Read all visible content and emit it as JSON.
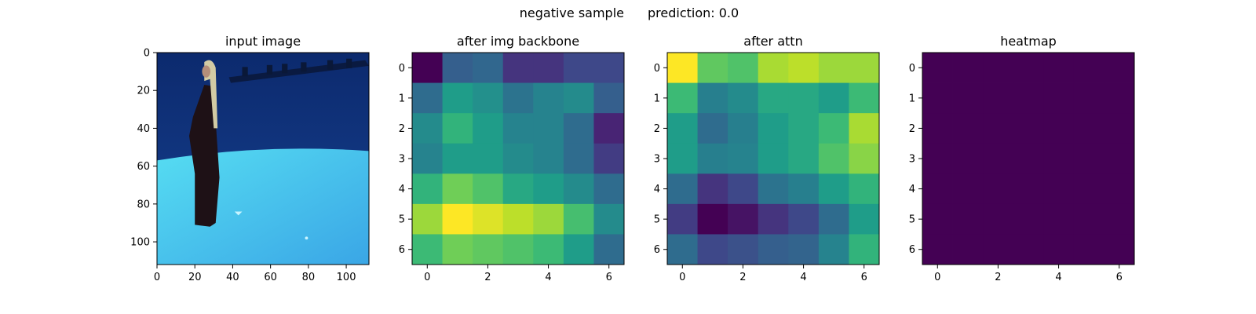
{
  "figure": {
    "suptitle_left": "negative sample",
    "suptitle_right": "prediction: 0.0"
  },
  "colors": {
    "colormap": "viridis",
    "viridis_stops": [
      "#440154",
      "#482878",
      "#3e4989",
      "#31688e",
      "#26828e",
      "#1f9e89",
      "#35b779",
      "#6ece58",
      "#b5de2b",
      "#fde725"
    ],
    "spine": "#000000",
    "background": "#ffffff"
  },
  "chart_data": [
    {
      "type": "image",
      "title": "input image",
      "xlim": [
        0,
        112
      ],
      "ylim": [
        112,
        0
      ],
      "xticks": [
        0,
        20,
        40,
        60,
        80,
        100
      ],
      "yticks": [
        0,
        20,
        40,
        60,
        80,
        100
      ],
      "scene": {
        "wall_color": "#16408f",
        "floor_color": "#56ddf2",
        "person_color": "#1e1116",
        "hair_color": "#d2cba4",
        "rig_color": "#0a1838"
      }
    },
    {
      "type": "heatmap",
      "title": "after img backbone",
      "colormap": "viridis",
      "xticks": [
        0,
        2,
        4,
        6
      ],
      "yticks": [
        0,
        1,
        2,
        3,
        4,
        5,
        6
      ],
      "values": [
        [
          0.0,
          0.3,
          0.33,
          0.15,
          0.15,
          0.22,
          0.22
        ],
        [
          0.35,
          0.55,
          0.5,
          0.38,
          0.45,
          0.48,
          0.3
        ],
        [
          0.48,
          0.65,
          0.55,
          0.45,
          0.45,
          0.35,
          0.1
        ],
        [
          0.45,
          0.55,
          0.55,
          0.48,
          0.45,
          0.35,
          0.18
        ],
        [
          0.65,
          0.78,
          0.72,
          0.6,
          0.55,
          0.48,
          0.35
        ],
        [
          0.85,
          1.0,
          0.95,
          0.9,
          0.85,
          0.7,
          0.48
        ],
        [
          0.68,
          0.78,
          0.75,
          0.72,
          0.68,
          0.55,
          0.35
        ]
      ]
    },
    {
      "type": "heatmap",
      "title": "after attn",
      "colormap": "viridis",
      "xticks": [
        0,
        2,
        4,
        6
      ],
      "yticks": [
        0,
        1,
        2,
        3,
        4,
        5,
        6
      ],
      "values": [
        [
          1.0,
          0.75,
          0.72,
          0.87,
          0.9,
          0.85,
          0.85
        ],
        [
          0.68,
          0.43,
          0.48,
          0.6,
          0.6,
          0.55,
          0.68
        ],
        [
          0.55,
          0.35,
          0.43,
          0.55,
          0.6,
          0.68,
          0.87
        ],
        [
          0.55,
          0.43,
          0.45,
          0.55,
          0.6,
          0.72,
          0.82
        ],
        [
          0.35,
          0.15,
          0.22,
          0.38,
          0.43,
          0.55,
          0.65
        ],
        [
          0.18,
          0.0,
          0.05,
          0.15,
          0.22,
          0.35,
          0.55
        ],
        [
          0.35,
          0.22,
          0.25,
          0.3,
          0.32,
          0.45,
          0.65
        ]
      ]
    },
    {
      "type": "heatmap",
      "title": "heatmap",
      "colormap": "viridis",
      "xticks": [
        0,
        2,
        4,
        6
      ],
      "yticks": [
        0,
        1,
        2,
        3,
        4,
        5,
        6
      ],
      "values": [
        [
          0,
          0,
          0,
          0,
          0,
          0,
          0
        ],
        [
          0,
          0,
          0,
          0,
          0,
          0,
          0
        ],
        [
          0,
          0,
          0,
          0,
          0,
          0,
          0
        ],
        [
          0,
          0,
          0,
          0,
          0,
          0,
          0
        ],
        [
          0,
          0,
          0,
          0,
          0,
          0,
          0
        ],
        [
          0,
          0,
          0,
          0,
          0,
          0,
          0
        ],
        [
          0,
          0,
          0,
          0,
          0,
          0,
          0
        ]
      ]
    }
  ]
}
